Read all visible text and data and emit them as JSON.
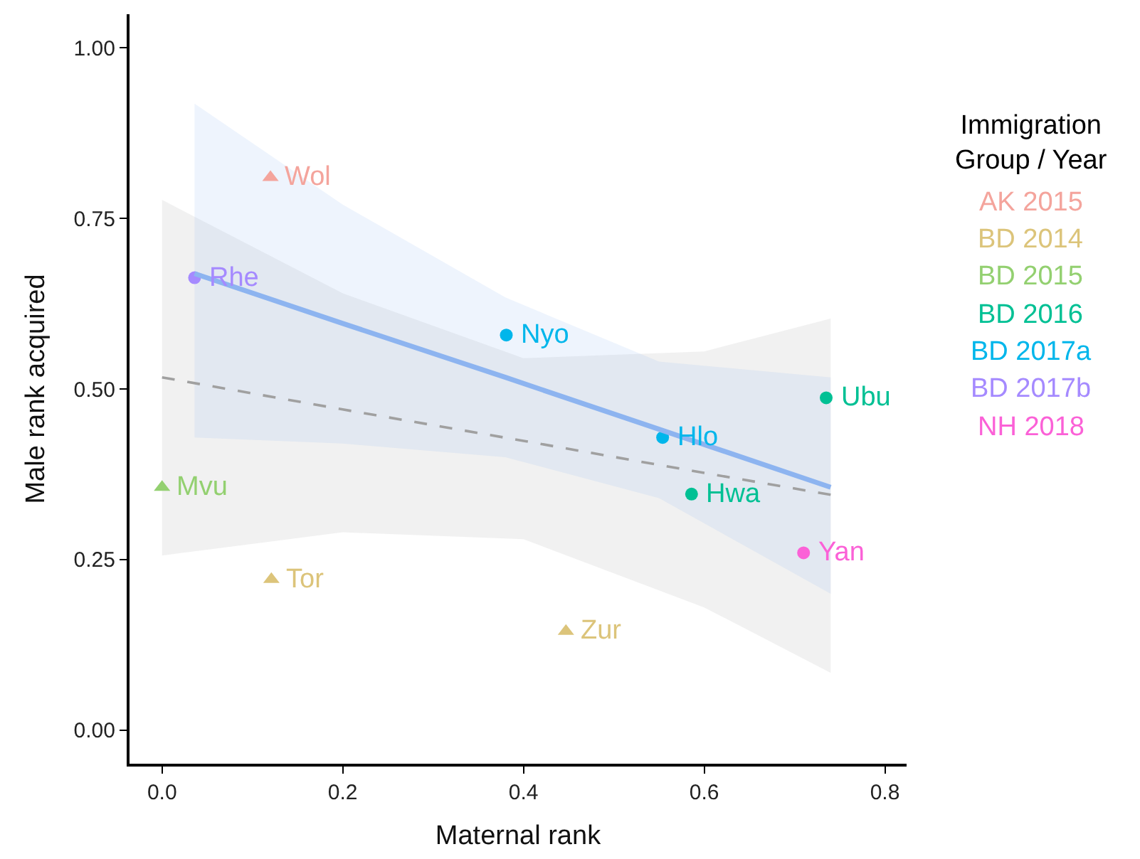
{
  "chart_data": {
    "type": "scatter",
    "xlabel": "Maternal rank",
    "ylabel": "Male rank acquired",
    "legend_title": "Immigration\nGroup / Year",
    "xlim": [
      -0.036,
      0.824
    ],
    "ylim": [
      -0.049,
      1.049
    ],
    "xticks": [
      {
        "value": 0,
        "label": "0.0"
      },
      0.2,
      0.4,
      0.6,
      0.8
    ],
    "yticks": [
      {
        "value": 0,
        "label": "0.00"
      },
      0.25,
      {
        "value": 0.5,
        "label": "0.50"
      },
      0.75,
      {
        "value": 1,
        "label": "1.00"
      }
    ],
    "legend": "right",
    "series": [
      {
        "name": "AK 2015",
        "color": "#f4a49c",
        "marker": "triangle",
        "x": [
          0.12
        ],
        "values": [
          0.81
        ]
      },
      {
        "name": "BD 2014",
        "color": "#dcc47a",
        "marker": "triangle",
        "x": [
          0.121,
          0.447
        ],
        "values": [
          0.221,
          0.145
        ]
      },
      {
        "name": "BD 2015",
        "color": "#93d070",
        "marker": "triangle",
        "x": [
          0.0
        ],
        "values": [
          0.356
        ]
      },
      {
        "name": "BD 2016",
        "color": "#00c094",
        "marker": "circle",
        "x": [
          0.735,
          0.586
        ],
        "values": [
          0.487,
          0.346
        ]
      },
      {
        "name": "BD 2017a",
        "color": "#00b6eb",
        "marker": "circle",
        "x": [
          0.381,
          0.554
        ],
        "values": [
          0.579,
          0.429
        ]
      },
      {
        "name": "BD 2017b",
        "color": "#a58aff",
        "marker": "circle",
        "x": [
          0.036
        ],
        "values": [
          0.663
        ]
      },
      {
        "name": "NH 2018",
        "color": "#fb61d7",
        "marker": "circle",
        "x": [
          0.71
        ],
        "values": [
          0.26
        ]
      },
      {
        "type": "line",
        "color": "#a0a0a0",
        "line_style": "dashed",
        "x": [
          0,
          0.2,
          0.4,
          0.6,
          0.74
        ],
        "values": [
          0.517,
          0.47,
          0.424,
          0.377,
          0.345
        ],
        "lower": [
          0.256,
          0.29,
          0.28,
          0.18,
          0.084
        ],
        "upper": [
          0.777,
          0.64,
          0.545,
          0.555,
          0.603
        ]
      },
      {
        "type": "line",
        "color": "#8db4f0",
        "line_style": "solid",
        "x": [
          0.036,
          0.2,
          0.38,
          0.55,
          0.74
        ],
        "values": [
          0.669,
          0.596,
          0.517,
          0.441,
          0.356
        ],
        "lower": [
          0.429,
          0.42,
          0.4,
          0.34,
          0.2
        ],
        "upper": [
          0.918,
          0.77,
          0.634,
          0.54,
          0.517
        ]
      }
    ],
    "annotations": [
      {
        "text": "Wol",
        "x": 0.12,
        "y": 0.81
      },
      {
        "text": "Tor",
        "x": 0.121,
        "y": 0.221
      },
      {
        "text": "Zur",
        "x": 0.447,
        "y": 0.145
      },
      {
        "text": "Mvu",
        "x": 0.0,
        "y": 0.356
      },
      {
        "text": "Ubu",
        "x": 0.735,
        "y": 0.487
      },
      {
        "text": "Hwa",
        "x": 0.586,
        "y": 0.346
      },
      {
        "text": "Nyo",
        "x": 0.381,
        "y": 0.579
      },
      {
        "text": "Hlo",
        "x": 0.554,
        "y": 0.429
      },
      {
        "text": "Rhe",
        "x": 0.036,
        "y": 0.663
      },
      {
        "text": "Yan",
        "x": 0.71,
        "y": 0.26
      }
    ]
  }
}
